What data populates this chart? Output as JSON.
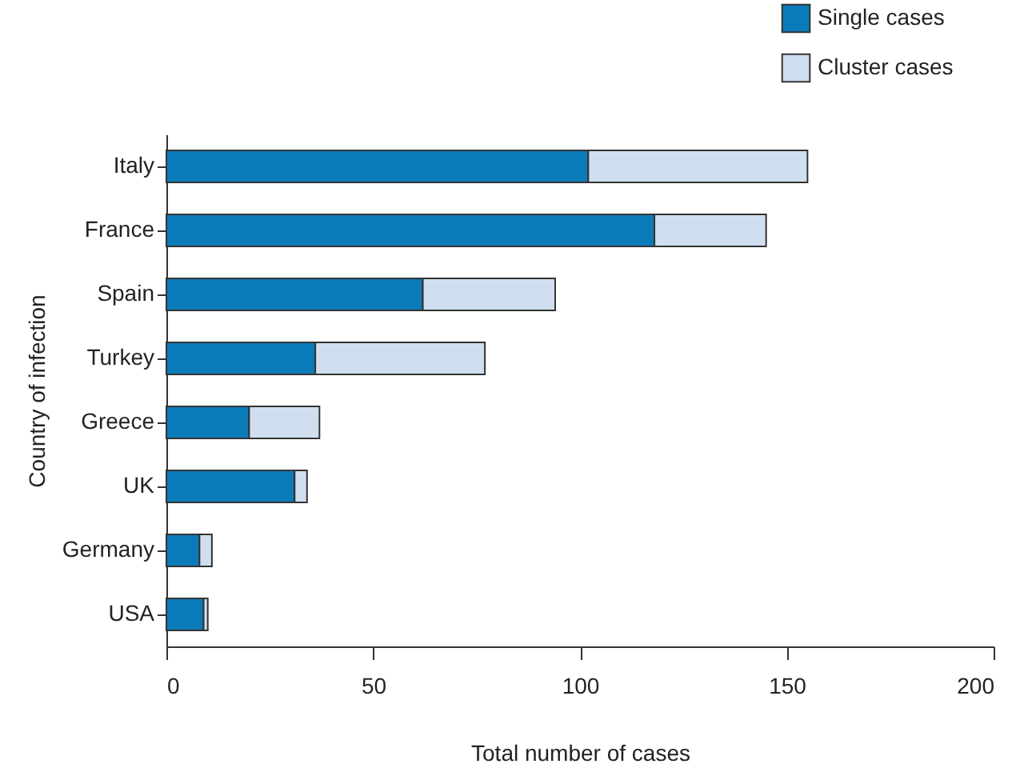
{
  "chart_data": {
    "type": "bar",
    "orientation": "horizontal",
    "stacked": true,
    "categories": [
      "Italy",
      "France",
      "Spain",
      "Turkey",
      "Greece",
      "UK",
      "Germany",
      "USA"
    ],
    "series": [
      {
        "name": "Single cases",
        "color": "#0a7bb8",
        "values": [
          102,
          118,
          62,
          36,
          20,
          31,
          8,
          9
        ]
      },
      {
        "name": "Cluster cases",
        "color": "#d0dff0",
        "values": [
          53,
          27,
          32,
          41,
          17,
          3,
          3,
          1
        ]
      }
    ],
    "xlim": [
      0,
      200
    ],
    "xticks": [
      0,
      50,
      100,
      150,
      200
    ],
    "xlabel": "Total number of cases",
    "ylabel": "Country of infection",
    "legend": "top right",
    "grid": false
  }
}
